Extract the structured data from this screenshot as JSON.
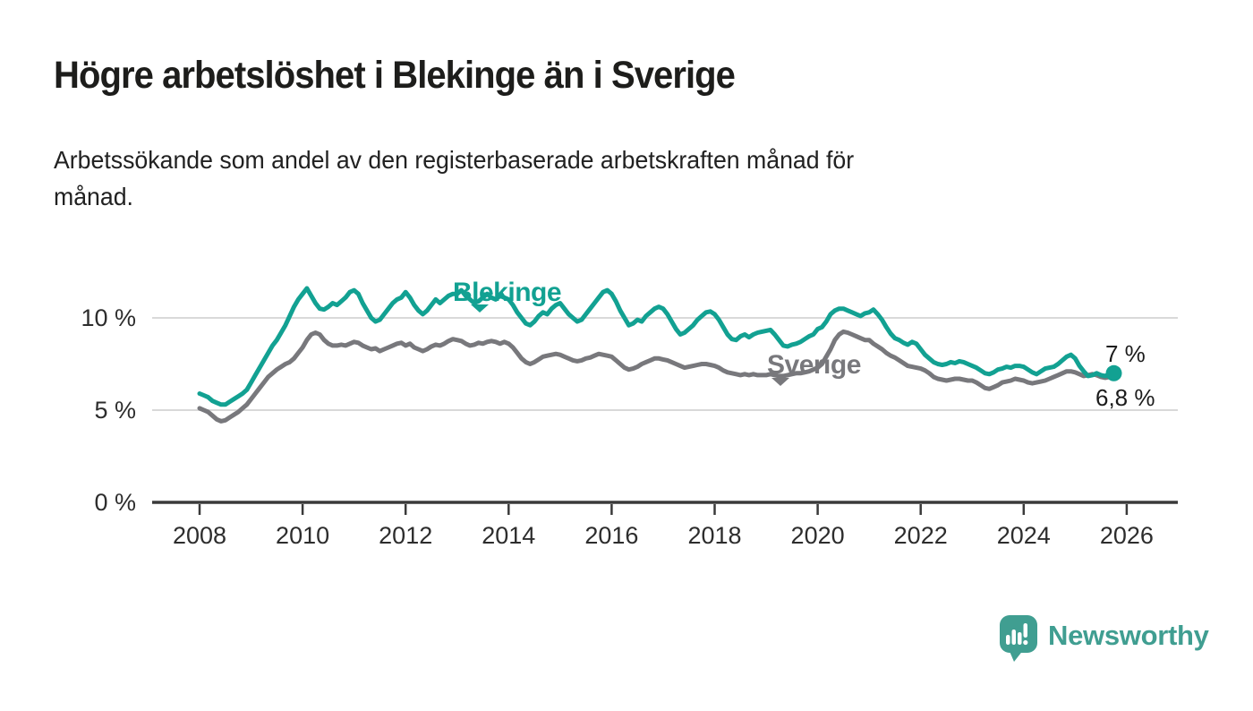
{
  "header": {
    "title": "Högre arbetslöshet i Blekinge än i Sverige",
    "subtitle_line1": "Arbetssökande som andel av den registerbaserade arbetskraften månad för",
    "subtitle_line2": "månad."
  },
  "chart_data": {
    "type": "line",
    "x_start_year": 2008,
    "x_interval_months": 1,
    "x_ticks": [
      "2008",
      "2010",
      "2012",
      "2014",
      "2016",
      "2018",
      "2020",
      "2022",
      "2024",
      "2026"
    ],
    "y_ticks": [
      {
        "value": 0,
        "label": "0 %"
      },
      {
        "value": 5,
        "label": "5 %"
      },
      {
        "value": 10,
        "label": "10 %"
      }
    ],
    "xlim": [
      2007.1,
      2027
    ],
    "ylim": [
      0,
      12.6
    ],
    "grid": "horizontal",
    "legend_position": "inline-labels",
    "colors": {
      "grid": "#d9d9d9",
      "axis": "#3a3a3a",
      "tick_text": "#2d2d2d"
    },
    "series": [
      {
        "name": "Blekinge",
        "color": "#12a192",
        "end_label": "7 %",
        "end_value": 7.0,
        "values": [
          5.9,
          5.8,
          5.7,
          5.5,
          5.4,
          5.3,
          5.3,
          5.45,
          5.6,
          5.75,
          5.9,
          6.1,
          6.5,
          6.9,
          7.3,
          7.7,
          8.1,
          8.5,
          8.8,
          9.2,
          9.6,
          10.1,
          10.6,
          11.0,
          11.3,
          11.6,
          11.2,
          10.8,
          10.5,
          10.45,
          10.6,
          10.8,
          10.7,
          10.9,
          11.1,
          11.4,
          11.5,
          11.3,
          10.8,
          10.4,
          10.0,
          9.8,
          9.9,
          10.2,
          10.5,
          10.8,
          11.0,
          11.1,
          11.4,
          11.1,
          10.7,
          10.4,
          10.2,
          10.4,
          10.7,
          11.0,
          10.8,
          11.0,
          11.2,
          11.3,
          11.3,
          11.5,
          11.2,
          11.0,
          10.8,
          10.9,
          11.1,
          11.3,
          11.1,
          11.0,
          11.2,
          11.1,
          11.0,
          10.7,
          10.3,
          10.0,
          9.7,
          9.6,
          9.8,
          10.1,
          10.3,
          10.2,
          10.5,
          10.7,
          10.8,
          10.5,
          10.2,
          10.0,
          9.8,
          9.9,
          10.2,
          10.5,
          10.8,
          11.1,
          11.4,
          11.5,
          11.3,
          10.9,
          10.4,
          10.0,
          9.6,
          9.7,
          9.9,
          9.8,
          10.1,
          10.3,
          10.5,
          10.6,
          10.5,
          10.2,
          9.8,
          9.4,
          9.1,
          9.2,
          9.4,
          9.6,
          9.9,
          10.1,
          10.3,
          10.35,
          10.2,
          9.9,
          9.5,
          9.1,
          8.85,
          8.8,
          9.0,
          9.1,
          8.95,
          9.1,
          9.2,
          9.25,
          9.3,
          9.35,
          9.1,
          8.8,
          8.5,
          8.45,
          8.55,
          8.6,
          8.7,
          8.85,
          9.0,
          9.1,
          9.4,
          9.5,
          9.8,
          10.2,
          10.4,
          10.5,
          10.5,
          10.4,
          10.3,
          10.2,
          10.1,
          10.25,
          10.3,
          10.45,
          10.2,
          9.9,
          9.5,
          9.15,
          8.9,
          8.8,
          8.65,
          8.55,
          8.7,
          8.6,
          8.3,
          8.0,
          7.8,
          7.6,
          7.5,
          7.45,
          7.5,
          7.6,
          7.55,
          7.65,
          7.6,
          7.5,
          7.4,
          7.3,
          7.15,
          7.0,
          6.95,
          7.05,
          7.2,
          7.25,
          7.35,
          7.3,
          7.4,
          7.4,
          7.35,
          7.2,
          7.05,
          6.95,
          7.1,
          7.25,
          7.3,
          7.35,
          7.5,
          7.7,
          7.9,
          8.0,
          7.8,
          7.4,
          7.1,
          6.85,
          6.9,
          7.0,
          6.9,
          6.85,
          6.95,
          7.0
        ]
      },
      {
        "name": "Sverige",
        "color": "#78787c",
        "end_label": "6,8 %",
        "end_value": 6.8,
        "values": [
          5.1,
          5.0,
          4.9,
          4.7,
          4.5,
          4.4,
          4.45,
          4.6,
          4.75,
          4.9,
          5.1,
          5.3,
          5.6,
          5.9,
          6.2,
          6.5,
          6.8,
          7.0,
          7.2,
          7.35,
          7.5,
          7.6,
          7.8,
          8.1,
          8.4,
          8.8,
          9.1,
          9.2,
          9.1,
          8.8,
          8.6,
          8.5,
          8.5,
          8.55,
          8.5,
          8.6,
          8.7,
          8.65,
          8.5,
          8.4,
          8.3,
          8.35,
          8.2,
          8.3,
          8.4,
          8.5,
          8.6,
          8.65,
          8.5,
          8.6,
          8.4,
          8.3,
          8.2,
          8.3,
          8.45,
          8.55,
          8.5,
          8.6,
          8.75,
          8.85,
          8.8,
          8.75,
          8.6,
          8.5,
          8.55,
          8.65,
          8.6,
          8.7,
          8.75,
          8.7,
          8.6,
          8.7,
          8.6,
          8.4,
          8.1,
          7.8,
          7.6,
          7.5,
          7.6,
          7.75,
          7.9,
          7.95,
          8.0,
          8.05,
          8.0,
          7.9,
          7.8,
          7.7,
          7.65,
          7.7,
          7.8,
          7.85,
          7.95,
          8.05,
          8.0,
          7.95,
          7.9,
          7.7,
          7.5,
          7.3,
          7.2,
          7.25,
          7.35,
          7.5,
          7.6,
          7.7,
          7.8,
          7.8,
          7.75,
          7.7,
          7.6,
          7.5,
          7.4,
          7.3,
          7.35,
          7.4,
          7.45,
          7.5,
          7.5,
          7.45,
          7.4,
          7.3,
          7.15,
          7.05,
          7.0,
          6.95,
          6.9,
          6.95,
          6.9,
          6.95,
          6.9,
          6.9,
          6.9,
          6.95,
          6.9,
          6.85,
          6.85,
          6.9,
          6.95,
          7.0,
          7.0,
          7.05,
          7.1,
          7.2,
          7.3,
          7.5,
          7.9,
          8.3,
          8.8,
          9.1,
          9.25,
          9.2,
          9.1,
          9.0,
          8.9,
          8.8,
          8.8,
          8.6,
          8.45,
          8.3,
          8.1,
          7.95,
          7.85,
          7.7,
          7.55,
          7.4,
          7.35,
          7.3,
          7.25,
          7.15,
          7.0,
          6.8,
          6.7,
          6.65,
          6.6,
          6.65,
          6.7,
          6.7,
          6.65,
          6.6,
          6.6,
          6.5,
          6.35,
          6.2,
          6.15,
          6.25,
          6.35,
          6.5,
          6.55,
          6.6,
          6.7,
          6.65,
          6.6,
          6.5,
          6.45,
          6.5,
          6.55,
          6.6,
          6.7,
          6.8,
          6.9,
          7.0,
          7.1,
          7.1,
          7.05,
          6.95,
          6.85,
          6.9,
          6.95,
          6.9,
          6.8,
          6.75,
          6.8,
          6.8
        ]
      }
    ]
  },
  "logo": {
    "text": "Newsworthy",
    "color": "#409e91",
    "icon": "bar-chart-speech-bubble"
  }
}
